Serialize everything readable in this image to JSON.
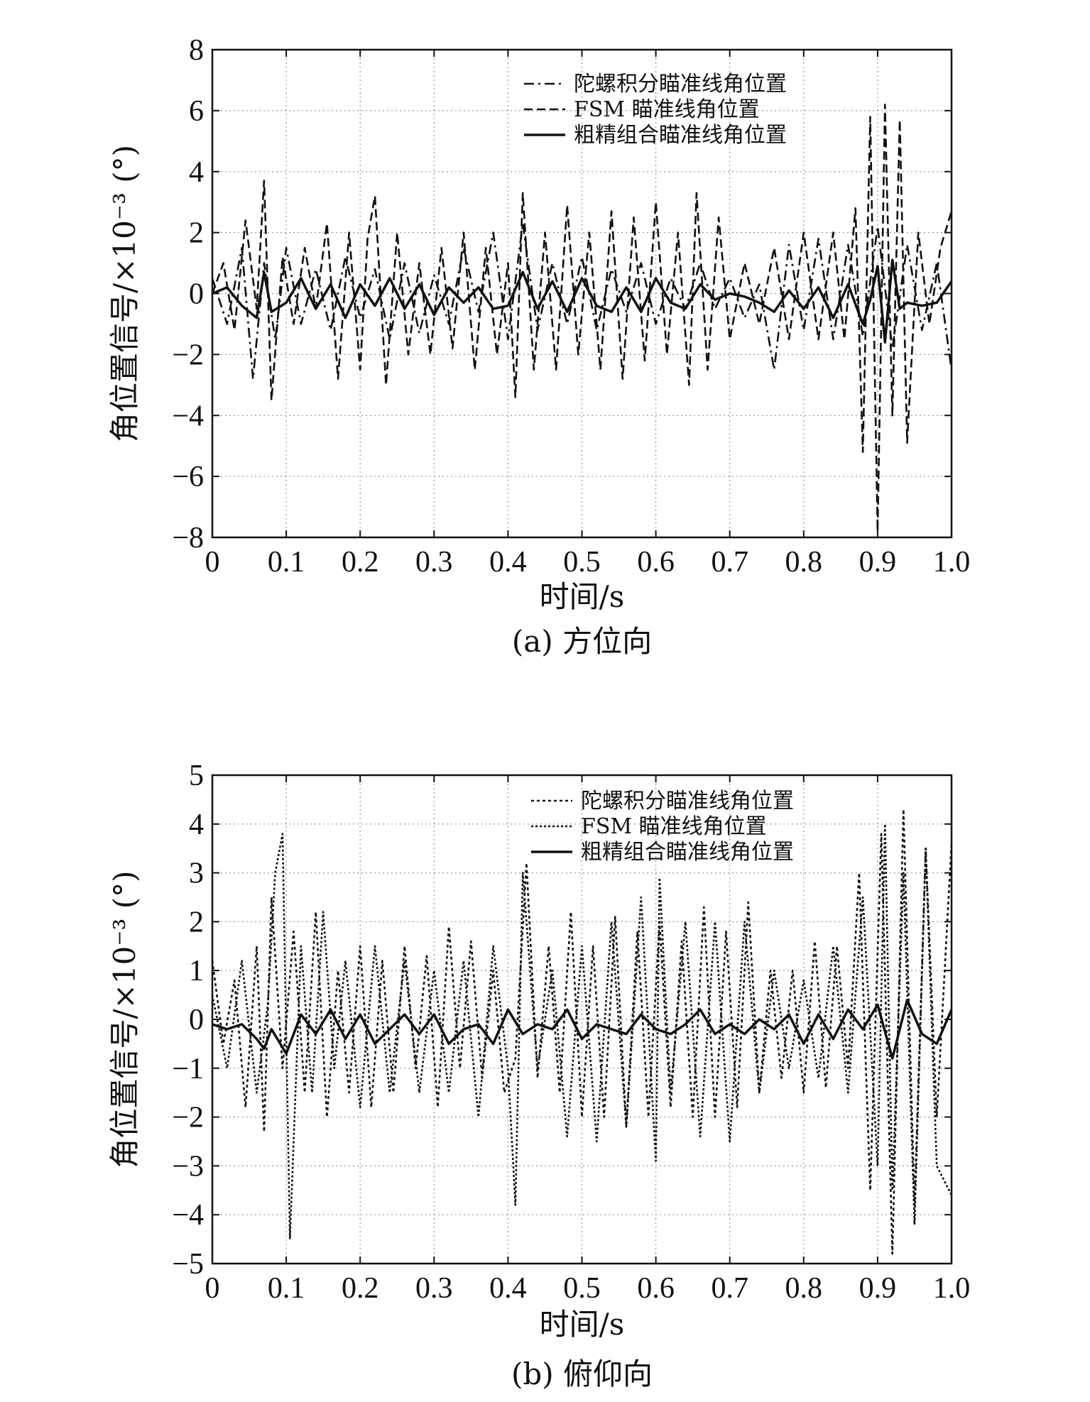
{
  "chart_data": [
    {
      "type": "line",
      "caption": "(a) 方位向",
      "xlabel": "时间/s",
      "ylabel": "角位置信号/×10⁻³ (°)",
      "xlim": [
        0,
        1.0
      ],
      "ylim": [
        -8,
        8
      ],
      "xticks": [
        "0",
        "0.1",
        "0.2",
        "0.3",
        "0.4",
        "0.5",
        "0.6",
        "0.7",
        "0.8",
        "0.9",
        "1.0"
      ],
      "yticks": [
        "−8",
        "−6",
        "−4",
        "−2",
        "0",
        "2",
        "4",
        "6",
        "8"
      ],
      "grid": true,
      "legend_position": "top-right",
      "series": [
        {
          "name": "陀螺积分瞄准线角位置",
          "style": "dashdot",
          "x": [
            0,
            0.02,
            0.04,
            0.055,
            0.07,
            0.085,
            0.1,
            0.12,
            0.14,
            0.16,
            0.18,
            0.2,
            0.22,
            0.24,
            0.26,
            0.28,
            0.3,
            0.32,
            0.34,
            0.36,
            0.38,
            0.4,
            0.42,
            0.44,
            0.46,
            0.48,
            0.5,
            0.52,
            0.54,
            0.56,
            0.58,
            0.6,
            0.62,
            0.64,
            0.66,
            0.68,
            0.7,
            0.72,
            0.74,
            0.76,
            0.78,
            0.8,
            0.82,
            0.84,
            0.86,
            0.88,
            0.9,
            0.92,
            0.94,
            0.96,
            0.98,
            1.0
          ],
          "values": [
            0.5,
            -1.0,
            1.5,
            -2.8,
            1.0,
            -1.5,
            1.5,
            -1.0,
            0.8,
            -1.2,
            1.2,
            -0.8,
            0.8,
            -1.5,
            1.0,
            -1.3,
            0.6,
            -1.0,
            1.5,
            -0.6,
            2.0,
            -1.5,
            2.3,
            -1.2,
            1.0,
            -1.0,
            1.2,
            -1.2,
            0.8,
            -0.6,
            1.0,
            -1.0,
            0.5,
            -0.5,
            1.0,
            -0.5,
            0.5,
            -0.8,
            0.3,
            -2.5,
            1.6,
            -1.2,
            1.8,
            -1.5,
            1.6,
            -1.4,
            2.2,
            -1.8,
            1.6,
            -1.2,
            1.0,
            -2.5
          ]
        },
        {
          "name": "FSM 瞄准线角位置",
          "style": "dashed",
          "x": [
            0,
            0.015,
            0.03,
            0.045,
            0.06,
            0.07,
            0.08,
            0.095,
            0.11,
            0.125,
            0.14,
            0.155,
            0.17,
            0.185,
            0.2,
            0.21,
            0.22,
            0.235,
            0.25,
            0.265,
            0.28,
            0.295,
            0.31,
            0.325,
            0.34,
            0.355,
            0.37,
            0.385,
            0.4,
            0.41,
            0.42,
            0.435,
            0.45,
            0.465,
            0.48,
            0.495,
            0.51,
            0.525,
            0.54,
            0.555,
            0.57,
            0.585,
            0.6,
            0.615,
            0.63,
            0.645,
            0.655,
            0.67,
            0.685,
            0.7,
            0.72,
            0.74,
            0.76,
            0.78,
            0.8,
            0.82,
            0.84,
            0.855,
            0.87,
            0.88,
            0.89,
            0.9,
            0.91,
            0.92,
            0.93,
            0.94,
            0.955,
            0.97,
            0.985,
            1.0
          ],
          "values": [
            0,
            1.0,
            -1.2,
            2.4,
            -0.5,
            3.7,
            -3.5,
            1.2,
            -1.0,
            1.5,
            -0.5,
            2.3,
            -2.8,
            2.0,
            -2.5,
            1.8,
            3.2,
            -3.0,
            2.0,
            -2.0,
            1.0,
            -2.0,
            1.5,
            -1.8,
            2.0,
            -2.5,
            1.5,
            -2.0,
            1.0,
            -3.4,
            3.3,
            -2.5,
            2.0,
            -2.5,
            2.9,
            -2.0,
            2.0,
            -2.5,
            2.7,
            -2.8,
            2.5,
            -2.2,
            3.0,
            -2.0,
            2.0,
            -3.0,
            3.3,
            -2.5,
            2.5,
            -1.5,
            1.0,
            -1.0,
            1.5,
            -1.5,
            2.0,
            -1.5,
            2.0,
            -1.5,
            2.8,
            -5.2,
            5.8,
            -7.8,
            6.2,
            -4.0,
            5.7,
            -4.9,
            2.0,
            -1.0,
            1.5,
            2.7
          ]
        },
        {
          "name": "粗精组合瞄准线角位置",
          "style": "solid",
          "x": [
            0,
            0.02,
            0.04,
            0.06,
            0.07,
            0.08,
            0.1,
            0.12,
            0.14,
            0.16,
            0.18,
            0.2,
            0.22,
            0.24,
            0.26,
            0.28,
            0.3,
            0.32,
            0.34,
            0.36,
            0.38,
            0.4,
            0.42,
            0.44,
            0.46,
            0.48,
            0.5,
            0.52,
            0.54,
            0.56,
            0.58,
            0.6,
            0.62,
            0.64,
            0.66,
            0.68,
            0.7,
            0.72,
            0.74,
            0.76,
            0.78,
            0.8,
            0.82,
            0.84,
            0.86,
            0.88,
            0.89,
            0.9,
            0.91,
            0.92,
            0.93,
            0.94,
            0.96,
            0.98,
            1.0
          ],
          "values": [
            0,
            0.2,
            -0.4,
            -0.8,
            0.7,
            -0.6,
            -0.3,
            0.5,
            -0.5,
            0.3,
            -0.8,
            0.3,
            -0.4,
            0.5,
            -0.5,
            0.3,
            -0.7,
            0.2,
            -0.3,
            0.2,
            -0.5,
            -0.4,
            0.7,
            -0.5,
            0.4,
            -0.6,
            0.5,
            -0.4,
            -0.6,
            0.2,
            -0.6,
            0.5,
            -0.3,
            -0.5,
            0.3,
            -0.2,
            0,
            -0.1,
            -0.3,
            -0.6,
            0.1,
            -0.5,
            0.2,
            -0.8,
            0.3,
            -1.0,
            -0.2,
            0.9,
            -1.6,
            1.1,
            -0.5,
            -0.3,
            -0.4,
            -0.3,
            0.4
          ]
        }
      ]
    },
    {
      "type": "line",
      "caption": "(b) 俯仰向",
      "xlabel": "时间/s",
      "ylabel": "角位置信号/×10⁻³ (°)",
      "xlim": [
        0,
        1.0
      ],
      "ylim": [
        -5,
        5
      ],
      "xticks": [
        "0",
        "0.1",
        "0.2",
        "0.3",
        "0.4",
        "0.5",
        "0.6",
        "0.7",
        "0.8",
        "0.9",
        "1.0"
      ],
      "yticks": [
        "−5",
        "−4",
        "−3",
        "−2",
        "−1",
        "0",
        "1",
        "2",
        "3",
        "4",
        "5"
      ],
      "grid": true,
      "legend_position": "top-right",
      "series": [
        {
          "name": "陀螺积分瞄准线角位置",
          "style": "dotted",
          "x": [
            0,
            0.015,
            0.03,
            0.045,
            0.06,
            0.07,
            0.08,
            0.095,
            0.11,
            0.125,
            0.14,
            0.155,
            0.17,
            0.185,
            0.2,
            0.215,
            0.23,
            0.245,
            0.26,
            0.275,
            0.29,
            0.305,
            0.32,
            0.335,
            0.35,
            0.365,
            0.38,
            0.395,
            0.41,
            0.425,
            0.44,
            0.455,
            0.47,
            0.485,
            0.5,
            0.515,
            0.53,
            0.545,
            0.56,
            0.575,
            0.59,
            0.605,
            0.62,
            0.635,
            0.65,
            0.665,
            0.68,
            0.695,
            0.71,
            0.725,
            0.74,
            0.755,
            0.77,
            0.785,
            0.8,
            0.815,
            0.83,
            0.845,
            0.86,
            0.875,
            0.89,
            0.905,
            0.92,
            0.935,
            0.95,
            0.965,
            0.98,
            1.0
          ],
          "values": [
            1.2,
            -0.5,
            0.8,
            -1.8,
            1.5,
            -2.3,
            2.5,
            -1.0,
            1.8,
            -1.5,
            2.2,
            -2.0,
            1.0,
            -1.5,
            1.5,
            -1.8,
            1.2,
            -1.5,
            1.5,
            -1.0,
            1.3,
            -1.8,
            1.9,
            -1.0,
            1.6,
            -1.2,
            1.0,
            -1.5,
            -0.8,
            3.2,
            -1.2,
            1.5,
            -1.5,
            2.2,
            -2.0,
            1.5,
            -2.0,
            2.1,
            -2.2,
            1.8,
            -2.0,
            2.0,
            -1.8,
            1.6,
            -2.0,
            2.3,
            -2.0,
            1.8,
            -1.8,
            2.4,
            -1.5,
            1.0,
            -1.2,
            1.0,
            -1.5,
            1.6,
            -1.4,
            1.5,
            -1.0,
            3.0,
            -3.5,
            3.8,
            -4.8,
            4.3,
            -3.8,
            3.5,
            -2.0,
            3.6
          ]
        },
        {
          "name": "FSM 瞄准线角位置",
          "style": "dotted-dense",
          "x": [
            0,
            0.02,
            0.04,
            0.06,
            0.075,
            0.085,
            0.095,
            0.105,
            0.12,
            0.135,
            0.15,
            0.165,
            0.18,
            0.2,
            0.22,
            0.24,
            0.26,
            0.28,
            0.3,
            0.32,
            0.34,
            0.36,
            0.38,
            0.4,
            0.41,
            0.42,
            0.44,
            0.46,
            0.48,
            0.5,
            0.52,
            0.54,
            0.56,
            0.58,
            0.6,
            0.605,
            0.62,
            0.64,
            0.66,
            0.68,
            0.7,
            0.72,
            0.74,
            0.76,
            0.78,
            0.8,
            0.82,
            0.84,
            0.86,
            0.88,
            0.9,
            0.91,
            0.92,
            0.935,
            0.95,
            0.965,
            0.98,
            1.0
          ],
          "values": [
            0.5,
            -1.0,
            1.2,
            -1.5,
            0.3,
            3.0,
            3.8,
            -4.5,
            1.5,
            -1.5,
            2.2,
            -1.0,
            1.2,
            -1.8,
            1.5,
            -1.5,
            1.2,
            -1.5,
            1.0,
            -1.5,
            1.2,
            -2.0,
            1.5,
            -1.0,
            -3.8,
            3.0,
            -1.0,
            1.0,
            -2.4,
            1.5,
            -2.5,
            2.0,
            -2.2,
            2.5,
            -2.9,
            2.9,
            -1.5,
            2.0,
            -2.4,
            2.0,
            -2.5,
            2.0,
            -1.5,
            1.0,
            -1.0,
            0.8,
            -1.2,
            1.5,
            -1.5,
            2.5,
            -3.0,
            4.0,
            -3.5,
            3.0,
            -4.2,
            3.5,
            -3.0,
            -3.6
          ]
        },
        {
          "name": "粗精组合瞄准线角位置",
          "style": "solid",
          "x": [
            0,
            0.02,
            0.04,
            0.06,
            0.07,
            0.08,
            0.1,
            0.12,
            0.14,
            0.16,
            0.18,
            0.2,
            0.22,
            0.24,
            0.26,
            0.28,
            0.3,
            0.32,
            0.34,
            0.36,
            0.38,
            0.4,
            0.42,
            0.44,
            0.46,
            0.48,
            0.5,
            0.52,
            0.54,
            0.56,
            0.58,
            0.6,
            0.62,
            0.64,
            0.66,
            0.68,
            0.7,
            0.72,
            0.74,
            0.76,
            0.78,
            0.8,
            0.82,
            0.84,
            0.86,
            0.88,
            0.9,
            0.92,
            0.94,
            0.96,
            0.98,
            1.0
          ],
          "values": [
            -0.1,
            -0.2,
            -0.1,
            -0.4,
            -0.6,
            -0.2,
            -0.7,
            0.1,
            -0.3,
            0.2,
            -0.4,
            0.1,
            -0.5,
            -0.2,
            0.1,
            -0.3,
            0.1,
            -0.5,
            -0.2,
            -0.1,
            -0.5,
            0.2,
            -0.3,
            -0.1,
            -0.2,
            0.2,
            -0.4,
            -0.1,
            -0.2,
            -0.3,
            0.1,
            -0.2,
            -0.3,
            -0.1,
            0.2,
            -0.3,
            -0.1,
            -0.3,
            0,
            -0.2,
            0.1,
            -0.5,
            0.1,
            -0.4,
            0.2,
            -0.2,
            0.3,
            -0.8,
            0.4,
            -0.3,
            -0.5,
            0.2
          ]
        }
      ]
    }
  ]
}
